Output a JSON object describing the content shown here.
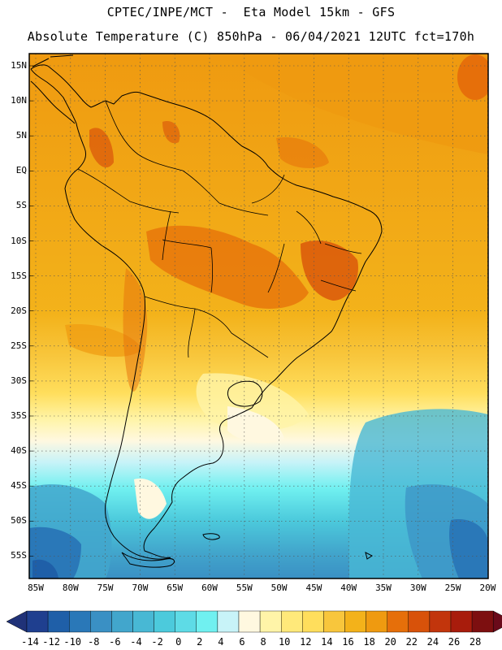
{
  "header": {
    "line1": "CPTEC/INPE/MCT -  Eta Model 15km - GFS",
    "line2": "Absolute Temperature (C) 850hPa - 06/04/2021 12UTC fct=170h"
  },
  "map": {
    "lat_labels": [
      "15N",
      "10N",
      "5N",
      "EQ",
      "5S",
      "10S",
      "15S",
      "20S",
      "25S",
      "30S",
      "35S",
      "40S",
      "45S",
      "50S",
      "55S"
    ],
    "lon_labels": [
      "85W",
      "80W",
      "75W",
      "70W",
      "65W",
      "60W",
      "55W",
      "50W",
      "45W",
      "40W",
      "35W",
      "30W",
      "25W",
      "20W"
    ]
  },
  "colorbar": {
    "labels": [
      "-14",
      "-12",
      "-10",
      "-8",
      "-6",
      "-4",
      "-2",
      "0",
      "2",
      "4",
      "6",
      "8",
      "10",
      "12",
      "14",
      "16",
      "18",
      "20",
      "22",
      "24",
      "26",
      "28"
    ],
    "colors": [
      "#1f3f8f",
      "#1f5fa8",
      "#2a78b8",
      "#3a90c4",
      "#42a6cc",
      "#48b8d4",
      "#4ccadc",
      "#5edbe6",
      "#70f0f0",
      "#c8f3f8",
      "#fff8e0",
      "#fff4a8",
      "#ffe97a",
      "#ffde5c",
      "#f8c63c",
      "#f3b21a",
      "#ef9a10",
      "#e66f0a",
      "#d8520a",
      "#c2350c",
      "#a81c0c",
      "#7d0f10"
    ],
    "low_arrow_color": "#203278",
    "high_arrow_color": "#6a0a1a"
  }
}
